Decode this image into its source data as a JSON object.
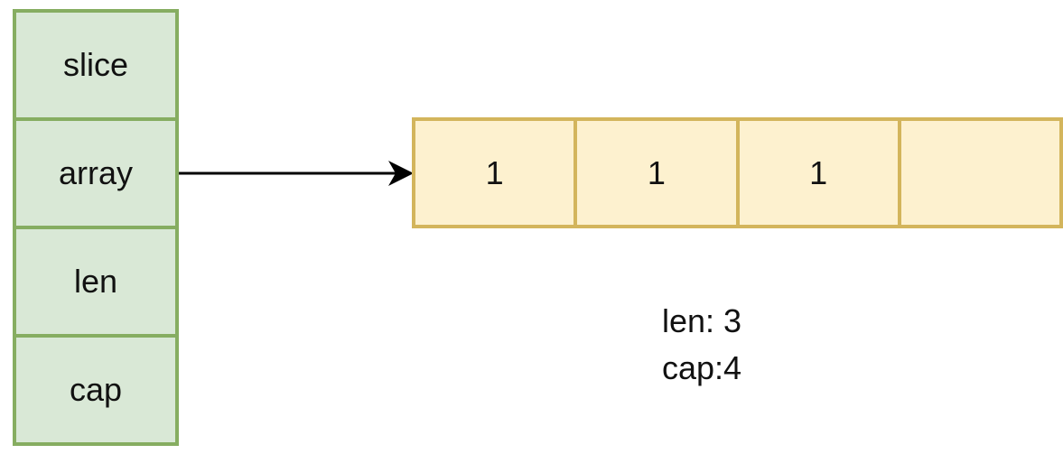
{
  "struct": {
    "fields": [
      "slice",
      "array",
      "len",
      "cap"
    ]
  },
  "array": {
    "cells": [
      "1",
      "1",
      "1",
      ""
    ]
  },
  "info": {
    "len_label": "len: 3",
    "cap_label": "cap:4"
  },
  "colors": {
    "struct_fill": "#d9e8d6",
    "struct_border": "#86ad61",
    "cell_fill": "#fdf1cf",
    "cell_border": "#d3b55c",
    "arrow": "#000000"
  }
}
